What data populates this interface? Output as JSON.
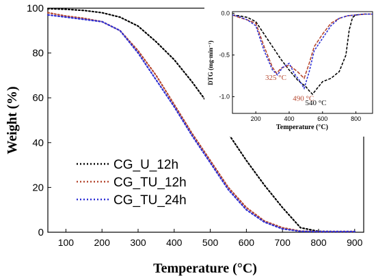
{
  "chart_data": [
    {
      "type": "line",
      "title": "",
      "xlabel": "Temperature (°C)",
      "ylabel": "Weight (%)",
      "xlim": [
        50,
        925
      ],
      "ylim": [
        0,
        100
      ],
      "x_ticks": [
        100,
        200,
        300,
        400,
        500,
        600,
        700,
        800,
        900
      ],
      "y_ticks": [
        0,
        20,
        40,
        60,
        80,
        100
      ],
      "legend_position": "bottom-left",
      "series": [
        {
          "name": "CG_U_12h",
          "color": "#000000",
          "x": [
            50,
            100,
            150,
            200,
            250,
            300,
            350,
            400,
            450,
            500,
            550,
            600,
            650,
            700,
            750,
            800,
            850,
            900
          ],
          "y": [
            99.8,
            99.5,
            99,
            98,
            96,
            92,
            85,
            77,
            67,
            56,
            44,
            32,
            21,
            11,
            2,
            0.4,
            0.3,
            0.3
          ]
        },
        {
          "name": "CG_TU_12h",
          "color": "#b5472f",
          "x": [
            50,
            100,
            150,
            200,
            250,
            300,
            350,
            400,
            450,
            500,
            550,
            600,
            650,
            700,
            750,
            800,
            850,
            900
          ],
          "y": [
            98,
            96.5,
            95.5,
            94,
            90,
            81,
            70,
            57,
            44,
            32,
            20,
            11,
            5,
            2,
            0.5,
            0.3,
            0.3,
            0.3
          ]
        },
        {
          "name": "CG_TU_24h",
          "color": "#2d2fd4",
          "x": [
            50,
            100,
            150,
            200,
            250,
            300,
            350,
            400,
            450,
            500,
            550,
            600,
            650,
            700,
            750,
            800,
            850,
            900
          ],
          "y": [
            97,
            96,
            95,
            94,
            90,
            80,
            68,
            56,
            43,
            31,
            19,
            10,
            4.5,
            1.5,
            0.4,
            0.3,
            0.3,
            0.3
          ]
        }
      ]
    },
    {
      "type": "line",
      "title": "",
      "xlabel": "Temperature (°C)",
      "ylabel": "DTG (mg·min⁻¹)",
      "xlim": [
        60,
        900
      ],
      "ylim": [
        -1.2,
        0.02
      ],
      "x_ticks": [
        200,
        400,
        600,
        800
      ],
      "y_ticks": [
        0.0,
        -0.5,
        -1.0
      ],
      "y_tick_labels": [
        "0.0",
        "-0.5",
        "-1.0"
      ],
      "annotations": [
        {
          "text": "325 °C",
          "color": "#b5472f",
          "x": 320,
          "y": -0.8
        },
        {
          "text": "490 °C",
          "color": "#b5472f",
          "x": 485,
          "y": -1.05
        },
        {
          "text": "540 °C",
          "color": "#000000",
          "x": 560,
          "y": -1.1
        }
      ],
      "series": [
        {
          "color": "#000000",
          "x": [
            60,
            100,
            150,
            200,
            250,
            300,
            350,
            400,
            450,
            500,
            520,
            540,
            560,
            600,
            650,
            700,
            740,
            760,
            780,
            800,
            850,
            900
          ],
          "y": [
            -0.02,
            -0.03,
            -0.05,
            -0.1,
            -0.25,
            -0.4,
            -0.55,
            -0.68,
            -0.8,
            -0.88,
            -0.93,
            -0.97,
            -0.92,
            -0.82,
            -0.78,
            -0.7,
            -0.5,
            -0.2,
            -0.05,
            -0.02,
            -0.01,
            -0.01
          ]
        },
        {
          "color": "#b5472f",
          "x": [
            60,
            100,
            150,
            200,
            250,
            300,
            325,
            350,
            400,
            450,
            490,
            520,
            550,
            600,
            650,
            700,
            750,
            800,
            850,
            900
          ],
          "y": [
            -0.02,
            -0.05,
            -0.08,
            -0.12,
            -0.4,
            -0.65,
            -0.72,
            -0.66,
            -0.62,
            -0.7,
            -0.78,
            -0.6,
            -0.4,
            -0.25,
            -0.12,
            -0.06,
            -0.03,
            -0.02,
            -0.01,
            -0.01
          ]
        },
        {
          "color": "#2d2fd4",
          "x": [
            60,
            100,
            150,
            200,
            250,
            300,
            330,
            360,
            400,
            430,
            460,
            490,
            520,
            550,
            600,
            650,
            700,
            750,
            800,
            850,
            900
          ],
          "y": [
            -0.02,
            -0.04,
            -0.08,
            -0.15,
            -0.45,
            -0.68,
            -0.74,
            -0.65,
            -0.6,
            -0.72,
            -0.8,
            -0.9,
            -0.7,
            -0.45,
            -0.3,
            -0.15,
            -0.06,
            -0.03,
            -0.02,
            -0.01,
            -0.01
          ]
        }
      ]
    }
  ]
}
